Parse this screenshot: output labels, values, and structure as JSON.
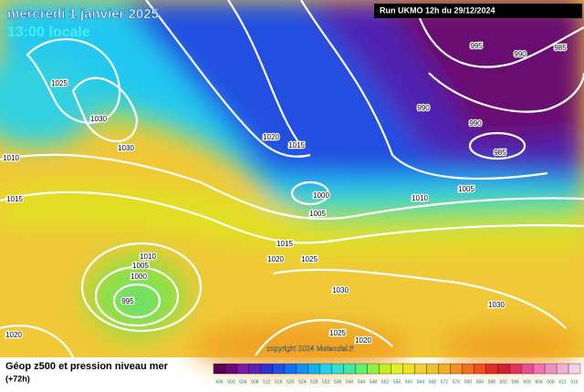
{
  "header": {
    "date": "mercredi 1 janvier 2025",
    "time": "13:00 locale",
    "run": "Run UKMO 12h du 29/12/2024"
  },
  "footer": {
    "title": "Géop z500 et pression niveau mer",
    "lead": "(+72h)",
    "copyright": "copyright 2024 Meteociel.fr"
  },
  "isobar_labels": [
    "1025",
    "1030",
    "1030",
    "1010",
    "1015",
    "1020",
    "1015",
    "1000",
    "1005",
    "1010",
    "1005",
    "995",
    "990",
    "985",
    "990",
    "990",
    "985",
    "1015",
    "1020",
    "1025",
    "1010",
    "1005",
    "1000",
    "995",
    "1030",
    "1030",
    "1025",
    "1020",
    "1020"
  ],
  "scale": {
    "labels": [
      496,
      500,
      504,
      508,
      512,
      516,
      520,
      524,
      528,
      532,
      536,
      540,
      544,
      548,
      552,
      556,
      560,
      564,
      568,
      572,
      576,
      580,
      584,
      588,
      592,
      596,
      600,
      604,
      608,
      612,
      616
    ],
    "colors": [
      "#5a0050",
      "#6a0a78",
      "#7a1aa0",
      "#6020b8",
      "#3030d0",
      "#2050e8",
      "#1070f0",
      "#1090f0",
      "#10b0f0",
      "#20d0f0",
      "#30e0d0",
      "#40e8a0",
      "#60f070",
      "#90f040",
      "#c0f020",
      "#e0f020",
      "#f0e020",
      "#f0d030",
      "#f0c030",
      "#f0b020",
      "#f09020",
      "#f07020",
      "#f05020",
      "#e03020",
      "#d02030",
      "#e03060",
      "#e05090",
      "#f070b0",
      "#f090c8",
      "#f0b0d8",
      "#f0d0e8"
    ]
  }
}
